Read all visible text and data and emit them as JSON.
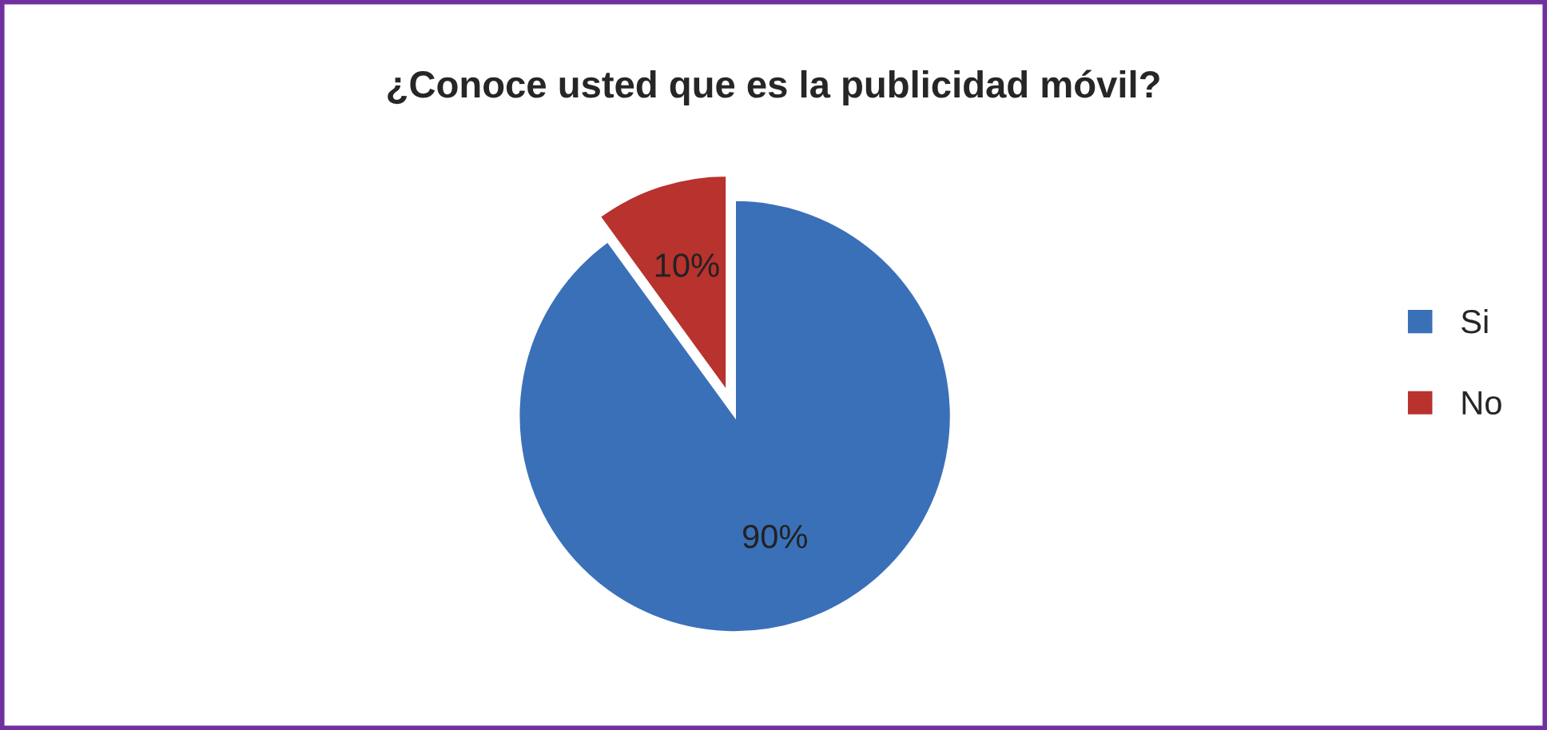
{
  "chart_data": {
    "type": "pie",
    "title": "¿Conoce usted que es la publicidad móvil?",
    "categories": [
      "Si",
      "No"
    ],
    "values": [
      90,
      10
    ],
    "colors": [
      "#3a70b8",
      "#b8322e"
    ],
    "value_labels": [
      "90%",
      "10%"
    ],
    "legend": "right"
  }
}
